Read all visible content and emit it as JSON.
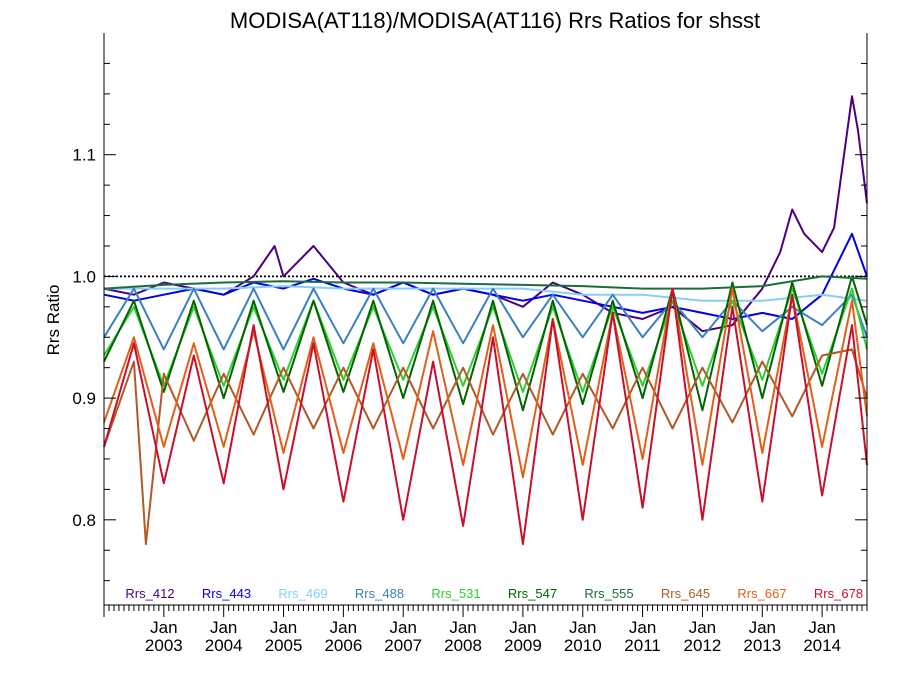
{
  "chart_data": {
    "type": "line",
    "title": "MODISA(AT118)/MODISA(AT116)  Rrs Ratios for shsst",
    "ylabel": "Rrs Ratio",
    "xlabel": "",
    "xlim": [
      2002.0,
      2014.75
    ],
    "ylim": [
      0.73,
      1.2
    ],
    "yticks": [
      0.8,
      0.9,
      1.0,
      1.1
    ],
    "ytick_labels": [
      "0.8",
      "0.9",
      "1.0",
      "1.1"
    ],
    "xticks": [
      {
        "x": 2003,
        "month": "Jan",
        "year": "2003"
      },
      {
        "x": 2004,
        "month": "Jan",
        "year": "2004"
      },
      {
        "x": 2005,
        "month": "Jan",
        "year": "2005"
      },
      {
        "x": 2006,
        "month": "Jan",
        "year": "2006"
      },
      {
        "x": 2007,
        "month": "Jan",
        "year": "2007"
      },
      {
        "x": 2008,
        "month": "Jan",
        "year": "2008"
      },
      {
        "x": 2009,
        "month": "Jan",
        "year": "2009"
      },
      {
        "x": 2010,
        "month": "Jan",
        "year": "2010"
      },
      {
        "x": 2011,
        "month": "Jan",
        "year": "2011"
      },
      {
        "x": 2012,
        "month": "Jan",
        "year": "2012"
      },
      {
        "x": 2013,
        "month": "Jan",
        "year": "2013"
      },
      {
        "x": 2014,
        "month": "Jan",
        "year": "2014"
      }
    ],
    "reference_line": 1.0,
    "legend_placement": "bottom",
    "series": [
      {
        "name": "Rrs_412",
        "color": "#4b0082",
        "x": [
          2002.0,
          2002.5,
          2003.0,
          2003.5,
          2004.0,
          2004.5,
          2004.85,
          2005.0,
          2005.5,
          2006.0,
          2006.5,
          2007.0,
          2007.5,
          2008.0,
          2008.5,
          2009.0,
          2009.5,
          2010.0,
          2010.5,
          2011.0,
          2011.5,
          2012.0,
          2012.5,
          2013.0,
          2013.3,
          2013.5,
          2013.7,
          2014.0,
          2014.2,
          2014.5,
          2014.6,
          2014.75
        ],
        "values": [
          0.99,
          0.985,
          0.995,
          0.99,
          0.985,
          1.0,
          1.025,
          1.0,
          1.025,
          0.995,
          0.985,
          0.995,
          0.985,
          0.99,
          0.985,
          0.975,
          0.995,
          0.985,
          0.97,
          0.965,
          0.975,
          0.955,
          0.96,
          0.99,
          1.02,
          1.055,
          1.035,
          1.02,
          1.04,
          1.148,
          1.12,
          1.06
        ]
      },
      {
        "name": "Rrs_443",
        "color": "#0000ee",
        "x": [
          2002.0,
          2002.5,
          2003.0,
          2003.5,
          2004.0,
          2004.5,
          2005.0,
          2005.5,
          2006.0,
          2006.5,
          2007.0,
          2007.5,
          2008.0,
          2008.5,
          2009.0,
          2009.5,
          2010.0,
          2010.5,
          2011.0,
          2011.5,
          2012.0,
          2012.5,
          2013.0,
          2013.5,
          2014.0,
          2014.5,
          2014.75
        ],
        "values": [
          0.985,
          0.98,
          0.985,
          0.99,
          0.985,
          0.995,
          0.99,
          0.998,
          0.99,
          0.985,
          0.995,
          0.985,
          0.99,
          0.985,
          0.98,
          0.985,
          0.98,
          0.975,
          0.97,
          0.975,
          0.97,
          0.965,
          0.97,
          0.965,
          0.985,
          1.035,
          1.0
        ]
      },
      {
        "name": "Rrs_469",
        "color": "#87cefa",
        "x": [
          2002.0,
          2003.0,
          2004.0,
          2005.0,
          2006.0,
          2007.0,
          2008.0,
          2009.0,
          2010.0,
          2011.0,
          2012.0,
          2013.0,
          2014.0,
          2014.75
        ],
        "values": [
          0.99,
          0.99,
          0.99,
          0.992,
          0.99,
          0.99,
          0.99,
          0.99,
          0.985,
          0.985,
          0.98,
          0.98,
          0.985,
          0.98
        ]
      },
      {
        "name": "Rrs_488",
        "color": "#3a80c0",
        "x": [
          2002.0,
          2002.5,
          2003.0,
          2003.5,
          2004.0,
          2004.5,
          2005.0,
          2005.5,
          2006.0,
          2006.5,
          2007.0,
          2007.5,
          2008.0,
          2008.5,
          2009.0,
          2009.5,
          2010.0,
          2010.5,
          2011.0,
          2011.5,
          2012.0,
          2012.5,
          2013.0,
          2013.5,
          2014.0,
          2014.5,
          2014.75
        ],
        "values": [
          0.95,
          0.99,
          0.94,
          0.99,
          0.94,
          0.99,
          0.94,
          0.99,
          0.945,
          0.99,
          0.945,
          0.99,
          0.945,
          0.99,
          0.95,
          0.985,
          0.95,
          0.985,
          0.95,
          0.98,
          0.95,
          0.98,
          0.955,
          0.975,
          0.96,
          0.985,
          0.95
        ]
      },
      {
        "name": "Rrs_531",
        "color": "#32cd32",
        "x": [
          2002.0,
          2002.5,
          2003.0,
          2003.5,
          2004.0,
          2004.5,
          2005.0,
          2005.5,
          2006.0,
          2006.5,
          2007.0,
          2007.5,
          2008.0,
          2008.5,
          2009.0,
          2009.5,
          2010.0,
          2010.5,
          2011.0,
          2011.5,
          2012.0,
          2012.5,
          2013.0,
          2013.5,
          2014.0,
          2014.5,
          2014.75
        ],
        "values": [
          0.935,
          0.975,
          0.91,
          0.975,
          0.91,
          0.975,
          0.915,
          0.98,
          0.915,
          0.975,
          0.915,
          0.975,
          0.91,
          0.975,
          0.905,
          0.975,
          0.905,
          0.975,
          0.91,
          0.98,
          0.91,
          0.98,
          0.915,
          0.99,
          0.92,
          0.99,
          0.94
        ]
      },
      {
        "name": "Rrs_547",
        "color": "#006400",
        "x": [
          2002.0,
          2002.5,
          2003.0,
          2003.5,
          2004.0,
          2004.5,
          2005.0,
          2005.5,
          2006.0,
          2006.5,
          2007.0,
          2007.5,
          2008.0,
          2008.5,
          2009.0,
          2009.5,
          2010.0,
          2010.5,
          2011.0,
          2011.5,
          2012.0,
          2012.5,
          2013.0,
          2013.5,
          2014.0,
          2014.5,
          2014.75
        ],
        "values": [
          0.93,
          0.98,
          0.905,
          0.98,
          0.9,
          0.98,
          0.905,
          0.98,
          0.905,
          0.98,
          0.9,
          0.98,
          0.895,
          0.98,
          0.89,
          0.98,
          0.895,
          0.98,
          0.9,
          0.99,
          0.89,
          0.995,
          0.9,
          0.995,
          0.91,
          1.0,
          0.96
        ]
      },
      {
        "name": "Rrs_555",
        "color": "#1b6e3a",
        "x": [
          2002.0,
          2003.0,
          2004.0,
          2005.0,
          2006.0,
          2007.0,
          2008.0,
          2009.0,
          2010.0,
          2011.0,
          2012.0,
          2013.0,
          2014.0,
          2014.75
        ],
        "values": [
          0.99,
          0.993,
          0.995,
          0.996,
          0.995,
          0.995,
          0.994,
          0.993,
          0.992,
          0.99,
          0.99,
          0.992,
          1.0,
          0.998
        ]
      },
      {
        "name": "Rrs_645",
        "color": "#b05a28",
        "x": [
          2002.0,
          2002.5,
          2002.7,
          2003.0,
          2003.5,
          2004.0,
          2004.5,
          2005.0,
          2005.5,
          2006.0,
          2006.5,
          2007.0,
          2007.5,
          2008.0,
          2008.5,
          2009.0,
          2009.5,
          2010.0,
          2010.5,
          2011.0,
          2011.5,
          2012.0,
          2012.5,
          2013.0,
          2013.5,
          2014.0,
          2014.5,
          2014.75
        ],
        "values": [
          0.86,
          0.93,
          0.78,
          0.92,
          0.865,
          0.92,
          0.87,
          0.925,
          0.875,
          0.925,
          0.875,
          0.925,
          0.875,
          0.925,
          0.87,
          0.92,
          0.87,
          0.92,
          0.875,
          0.925,
          0.875,
          0.925,
          0.88,
          0.93,
          0.885,
          0.935,
          0.94,
          0.9
        ]
      },
      {
        "name": "Rrs_667",
        "color": "#e0601a",
        "x": [
          2002.0,
          2002.5,
          2003.0,
          2003.5,
          2004.0,
          2004.5,
          2005.0,
          2005.5,
          2006.0,
          2006.5,
          2007.0,
          2007.5,
          2008.0,
          2008.5,
          2009.0,
          2009.5,
          2010.0,
          2010.5,
          2011.0,
          2011.5,
          2012.0,
          2012.5,
          2013.0,
          2013.5,
          2014.0,
          2014.5,
          2014.75
        ],
        "values": [
          0.88,
          0.95,
          0.86,
          0.945,
          0.86,
          0.955,
          0.855,
          0.95,
          0.855,
          0.945,
          0.85,
          0.955,
          0.845,
          0.96,
          0.835,
          0.965,
          0.845,
          0.97,
          0.85,
          0.99,
          0.845,
          0.99,
          0.855,
          0.985,
          0.86,
          0.98,
          0.885
        ]
      },
      {
        "name": "Rrs_678",
        "color": "#c8102e",
        "x": [
          2002.0,
          2002.5,
          2003.0,
          2003.5,
          2004.0,
          2004.5,
          2005.0,
          2005.5,
          2006.0,
          2006.5,
          2007.0,
          2007.5,
          2008.0,
          2008.5,
          2009.0,
          2009.5,
          2010.0,
          2010.5,
          2011.0,
          2011.5,
          2012.0,
          2012.5,
          2013.0,
          2013.5,
          2014.0,
          2014.5,
          2014.75
        ],
        "values": [
          0.86,
          0.945,
          0.83,
          0.935,
          0.83,
          0.96,
          0.825,
          0.945,
          0.815,
          0.94,
          0.8,
          0.93,
          0.795,
          0.95,
          0.78,
          0.965,
          0.8,
          0.97,
          0.81,
          0.99,
          0.8,
          0.975,
          0.815,
          0.985,
          0.82,
          0.96,
          0.845
        ]
      }
    ]
  }
}
